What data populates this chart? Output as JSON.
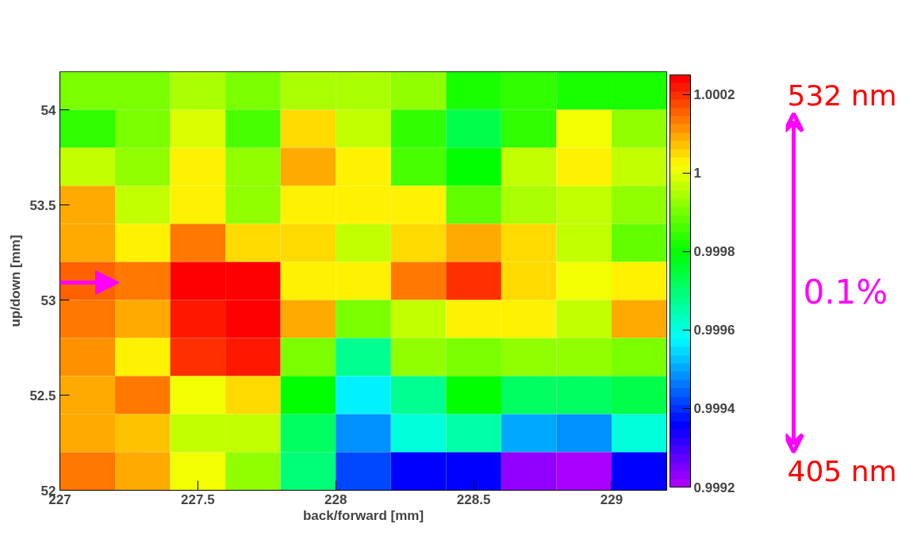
{
  "chart_data": {
    "type": "heatmap",
    "xlabel": "back/forward [mm]",
    "ylabel": "up/down [mm]",
    "xlim": [
      227,
      229.2
    ],
    "ylim": [
      52,
      54.2
    ],
    "xticks": [
      227,
      227.5,
      228,
      228.5,
      229
    ],
    "yticks": [
      52,
      52.5,
      53,
      53.5,
      54
    ],
    "clim": [
      0.9992,
      1.00025
    ],
    "cticks": [
      0.9992,
      0.9994,
      0.9996,
      0.9998,
      1,
      1.0002
    ],
    "grid": false,
    "annotations": [
      "532 nm",
      "0.1%",
      "405 nm"
    ],
    "cells": [
      [
        0.9999,
        0.9999,
        0.99995,
        0.9999,
        0.99995,
        0.99995,
        0.99992,
        0.99983,
        0.99984,
        0.99983,
        0.99983
      ],
      [
        0.99984,
        0.9999,
        0.99999,
        0.99987,
        1.00006,
        0.99997,
        0.99985,
        0.99974,
        0.99985,
        1.0,
        0.99993
      ],
      [
        0.99997,
        0.99992,
        1.00002,
        0.99993,
        1.00009,
        1.00002,
        0.99987,
        0.9998,
        0.99997,
        1.00004,
        0.99997
      ],
      [
        1.00009,
        0.99996,
        1.00002,
        0.99993,
        1.00002,
        1.00004,
        1.00002,
        0.99988,
        0.99995,
        0.99997,
        0.99992
      ],
      [
        1.00009,
        1.00002,
        1.00013,
        1.00006,
        1.00006,
        0.99996,
        1.00006,
        1.00009,
        1.00005,
        0.99997,
        0.99988
      ],
      [
        1.00016,
        1.00013,
        1.00024,
        1.00024,
        1.00002,
        1.00002,
        1.00013,
        1.00019,
        1.00005,
        1.0,
        1.00002
      ],
      [
        1.00014,
        1.00009,
        1.00021,
        1.00024,
        1.00009,
        0.9999,
        0.99997,
        1.00004,
        1.00004,
        0.99997,
        1.0001
      ],
      [
        1.00011,
        1.00002,
        1.00019,
        1.00022,
        0.9999,
        0.99967,
        0.99992,
        0.9999,
        0.99992,
        0.99992,
        0.9999
      ],
      [
        1.00009,
        1.00013,
        1.0,
        1.00006,
        0.9998,
        0.99956,
        0.99967,
        0.9998,
        0.99971,
        0.99971,
        0.99974
      ],
      [
        1.00009,
        1.00007,
        0.99997,
        0.99997,
        0.99972,
        0.99948,
        0.9996,
        0.99966,
        0.99951,
        0.99949,
        0.9996
      ],
      [
        1.00013,
        1.0001,
        1.0,
        0.99993,
        0.99969,
        0.99943,
        0.99935,
        0.99935,
        0.99924,
        0.99922,
        0.99935
      ]
    ]
  }
}
